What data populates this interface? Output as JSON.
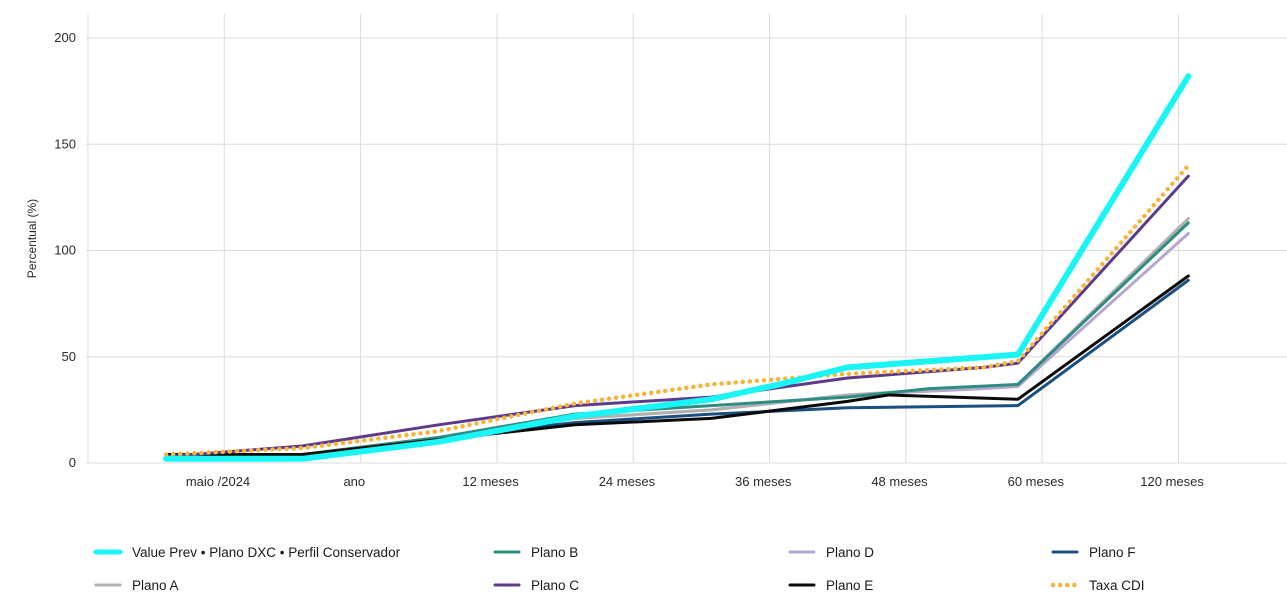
{
  "chart_data": {
    "type": "line",
    "title": "",
    "xlabel": "",
    "ylabel": "Percentual (%)",
    "ylim": [
      0,
      210
    ],
    "yticks": [
      0,
      50,
      100,
      150,
      200
    ],
    "categories": [
      "maio /2024",
      "ano",
      "12 meses",
      "24 meses",
      "36 meses",
      "48 meses",
      "60 meses",
      "120 meses"
    ],
    "grid": true,
    "legend_position": "bottom",
    "series": [
      {
        "name": "Value Prev • Plano DXC • Perfil Conservador",
        "color": "#19f5f5",
        "style": "thick",
        "points": [
          [
            0,
            2
          ],
          [
            1,
            2
          ],
          [
            2,
            10
          ],
          [
            3,
            22
          ],
          [
            4,
            30
          ],
          [
            4.5,
            37
          ],
          [
            5,
            45
          ],
          [
            6.25,
            51
          ],
          [
            7.5,
            182
          ]
        ]
      },
      {
        "name": "Plano A",
        "color": "#b0b0b0",
        "style": "solid",
        "points": [
          [
            0,
            2
          ],
          [
            1,
            4
          ],
          [
            2,
            11
          ],
          [
            3,
            21
          ],
          [
            4,
            25
          ],
          [
            5,
            32
          ],
          [
            6,
            36
          ],
          [
            6.25,
            37
          ],
          [
            7.5,
            115
          ]
        ]
      },
      {
        "name": "Plano B",
        "color": "#2e8c82",
        "style": "solid",
        "points": [
          [
            0,
            2
          ],
          [
            1,
            4
          ],
          [
            2,
            12
          ],
          [
            3,
            23
          ],
          [
            4,
            27
          ],
          [
            5,
            31
          ],
          [
            5.6,
            35
          ],
          [
            6.25,
            37
          ],
          [
            7.5,
            113
          ]
        ]
      },
      {
        "name": "Plano C",
        "color": "#5e3a8c",
        "style": "solid",
        "points": [
          [
            0,
            3
          ],
          [
            1,
            8
          ],
          [
            2,
            18
          ],
          [
            3,
            27
          ],
          [
            4,
            31
          ],
          [
            5,
            40
          ],
          [
            6,
            45
          ],
          [
            6.25,
            47
          ],
          [
            7.5,
            135
          ]
        ]
      },
      {
        "name": "Plano D",
        "color": "#b5a6d1",
        "style": "solid",
        "points": [
          [
            0,
            2
          ],
          [
            1,
            4
          ],
          [
            2,
            11
          ],
          [
            3,
            21
          ],
          [
            4,
            25
          ],
          [
            5,
            32
          ],
          [
            6,
            35
          ],
          [
            6.25,
            36
          ],
          [
            7.5,
            108
          ]
        ]
      },
      {
        "name": "Plano E",
        "color": "#0a0a0a",
        "style": "solid",
        "points": [
          [
            0,
            4
          ],
          [
            1,
            4
          ],
          [
            2,
            11
          ],
          [
            3,
            18
          ],
          [
            4,
            21
          ],
          [
            5,
            29
          ],
          [
            5.3,
            32
          ],
          [
            6.25,
            30
          ],
          [
            7.5,
            88
          ]
        ]
      },
      {
        "name": "Plano F",
        "color": "#1a4f7f",
        "style": "solid",
        "points": [
          [
            0,
            2
          ],
          [
            1,
            3
          ],
          [
            2,
            12
          ],
          [
            3,
            19
          ],
          [
            4,
            23
          ],
          [
            5,
            26
          ],
          [
            6.25,
            27
          ],
          [
            7.5,
            86
          ]
        ]
      },
      {
        "name": "Taxa CDI",
        "color": "#f5b53c",
        "style": "dotted",
        "points": [
          [
            0,
            4
          ],
          [
            1,
            7
          ],
          [
            2,
            15
          ],
          [
            3,
            28
          ],
          [
            4,
            37
          ],
          [
            5,
            42
          ],
          [
            6,
            45
          ],
          [
            6.25,
            48
          ],
          [
            7.5,
            140
          ]
        ]
      }
    ]
  }
}
